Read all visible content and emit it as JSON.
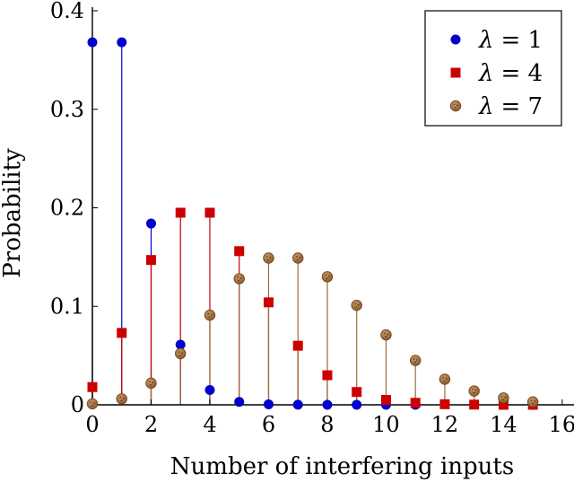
{
  "chart_data": {
    "type": "stem",
    "xlabel": "Number of interfering inputs",
    "ylabel": "Probability",
    "xlim": [
      0,
      16.4
    ],
    "ylim": [
      0,
      0.4
    ],
    "x_ticks": [
      0,
      2,
      4,
      6,
      8,
      10,
      12,
      14,
      16
    ],
    "y_ticks": [
      0,
      0.1,
      0.2,
      0.3,
      0.4
    ],
    "x_tick_labels": [
      "0",
      "2",
      "4",
      "6",
      "8",
      "10",
      "12",
      "14",
      "16"
    ],
    "y_tick_labels": [
      "0",
      "0.1",
      "0.2",
      "0.3",
      "0.4"
    ],
    "grid": false,
    "legend_position": "top-right",
    "series": [
      {
        "name": "λ = 1",
        "name_symbol": "λ",
        "name_value": "= 1",
        "marker": "circle",
        "color": "#0000cc",
        "x": [
          0,
          1,
          2,
          3,
          4,
          5,
          6,
          7,
          8,
          9,
          10,
          11
        ],
        "values": [
          0.368,
          0.368,
          0.184,
          0.061,
          0.015,
          0.003,
          0.0005,
          0.0001,
          0.0,
          0.0,
          0.0,
          0.0
        ]
      },
      {
        "name": "λ = 4",
        "name_symbol": "λ",
        "name_value": "= 4",
        "marker": "square",
        "color": "#cc0000",
        "x": [
          0,
          1,
          2,
          3,
          4,
          5,
          6,
          7,
          8,
          9,
          10,
          11,
          12,
          13,
          14,
          15
        ],
        "values": [
          0.018,
          0.073,
          0.147,
          0.195,
          0.195,
          0.156,
          0.104,
          0.06,
          0.03,
          0.013,
          0.005,
          0.002,
          0.0006,
          0.0002,
          0.0,
          0.0
        ]
      },
      {
        "name": "λ = 7",
        "name_symbol": "λ",
        "name_value": "= 7",
        "marker": "circle-dotted",
        "color": "#9b6b3c",
        "x": [
          0,
          1,
          2,
          3,
          4,
          5,
          6,
          7,
          8,
          9,
          10,
          11,
          12,
          13,
          14,
          15
        ],
        "values": [
          0.001,
          0.006,
          0.022,
          0.052,
          0.091,
          0.128,
          0.149,
          0.149,
          0.13,
          0.101,
          0.071,
          0.045,
          0.026,
          0.014,
          0.007,
          0.003
        ]
      }
    ]
  }
}
